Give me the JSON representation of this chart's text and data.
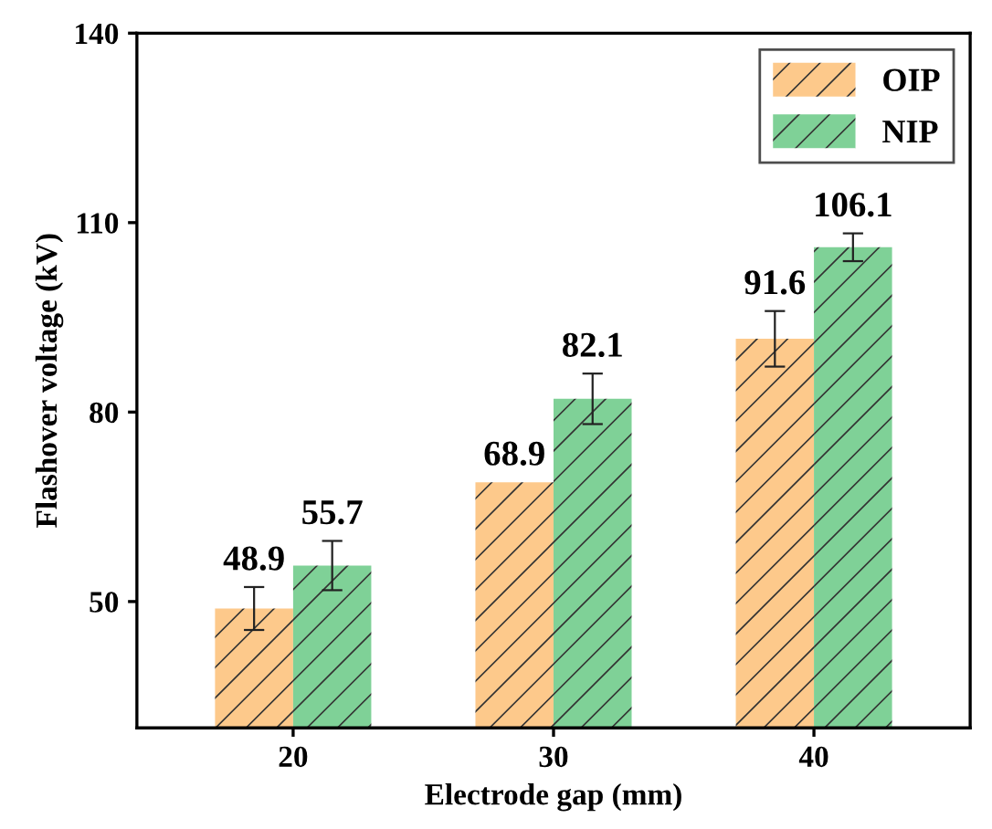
{
  "chart_data": {
    "type": "bar",
    "xlabel": "Electrode gap (mm)",
    "ylabel": "Flashover voltage (kV)",
    "categories": [
      "20",
      "30",
      "40"
    ],
    "series": [
      {
        "name": "OIP",
        "color": "#fdc98b",
        "values": [
          48.9,
          68.9,
          91.6
        ],
        "errors": [
          3.4,
          null,
          4.4
        ]
      },
      {
        "name": "NIP",
        "color": "#7fd197",
        "values": [
          55.7,
          82.1,
          106.1
        ],
        "errors": [
          3.9,
          4.0,
          2.2
        ]
      }
    ],
    "ylim": [
      30,
      140
    ],
    "yticks": [
      50,
      80,
      110,
      140
    ],
    "data_labels": true,
    "legend": "top right",
    "grid": false
  }
}
